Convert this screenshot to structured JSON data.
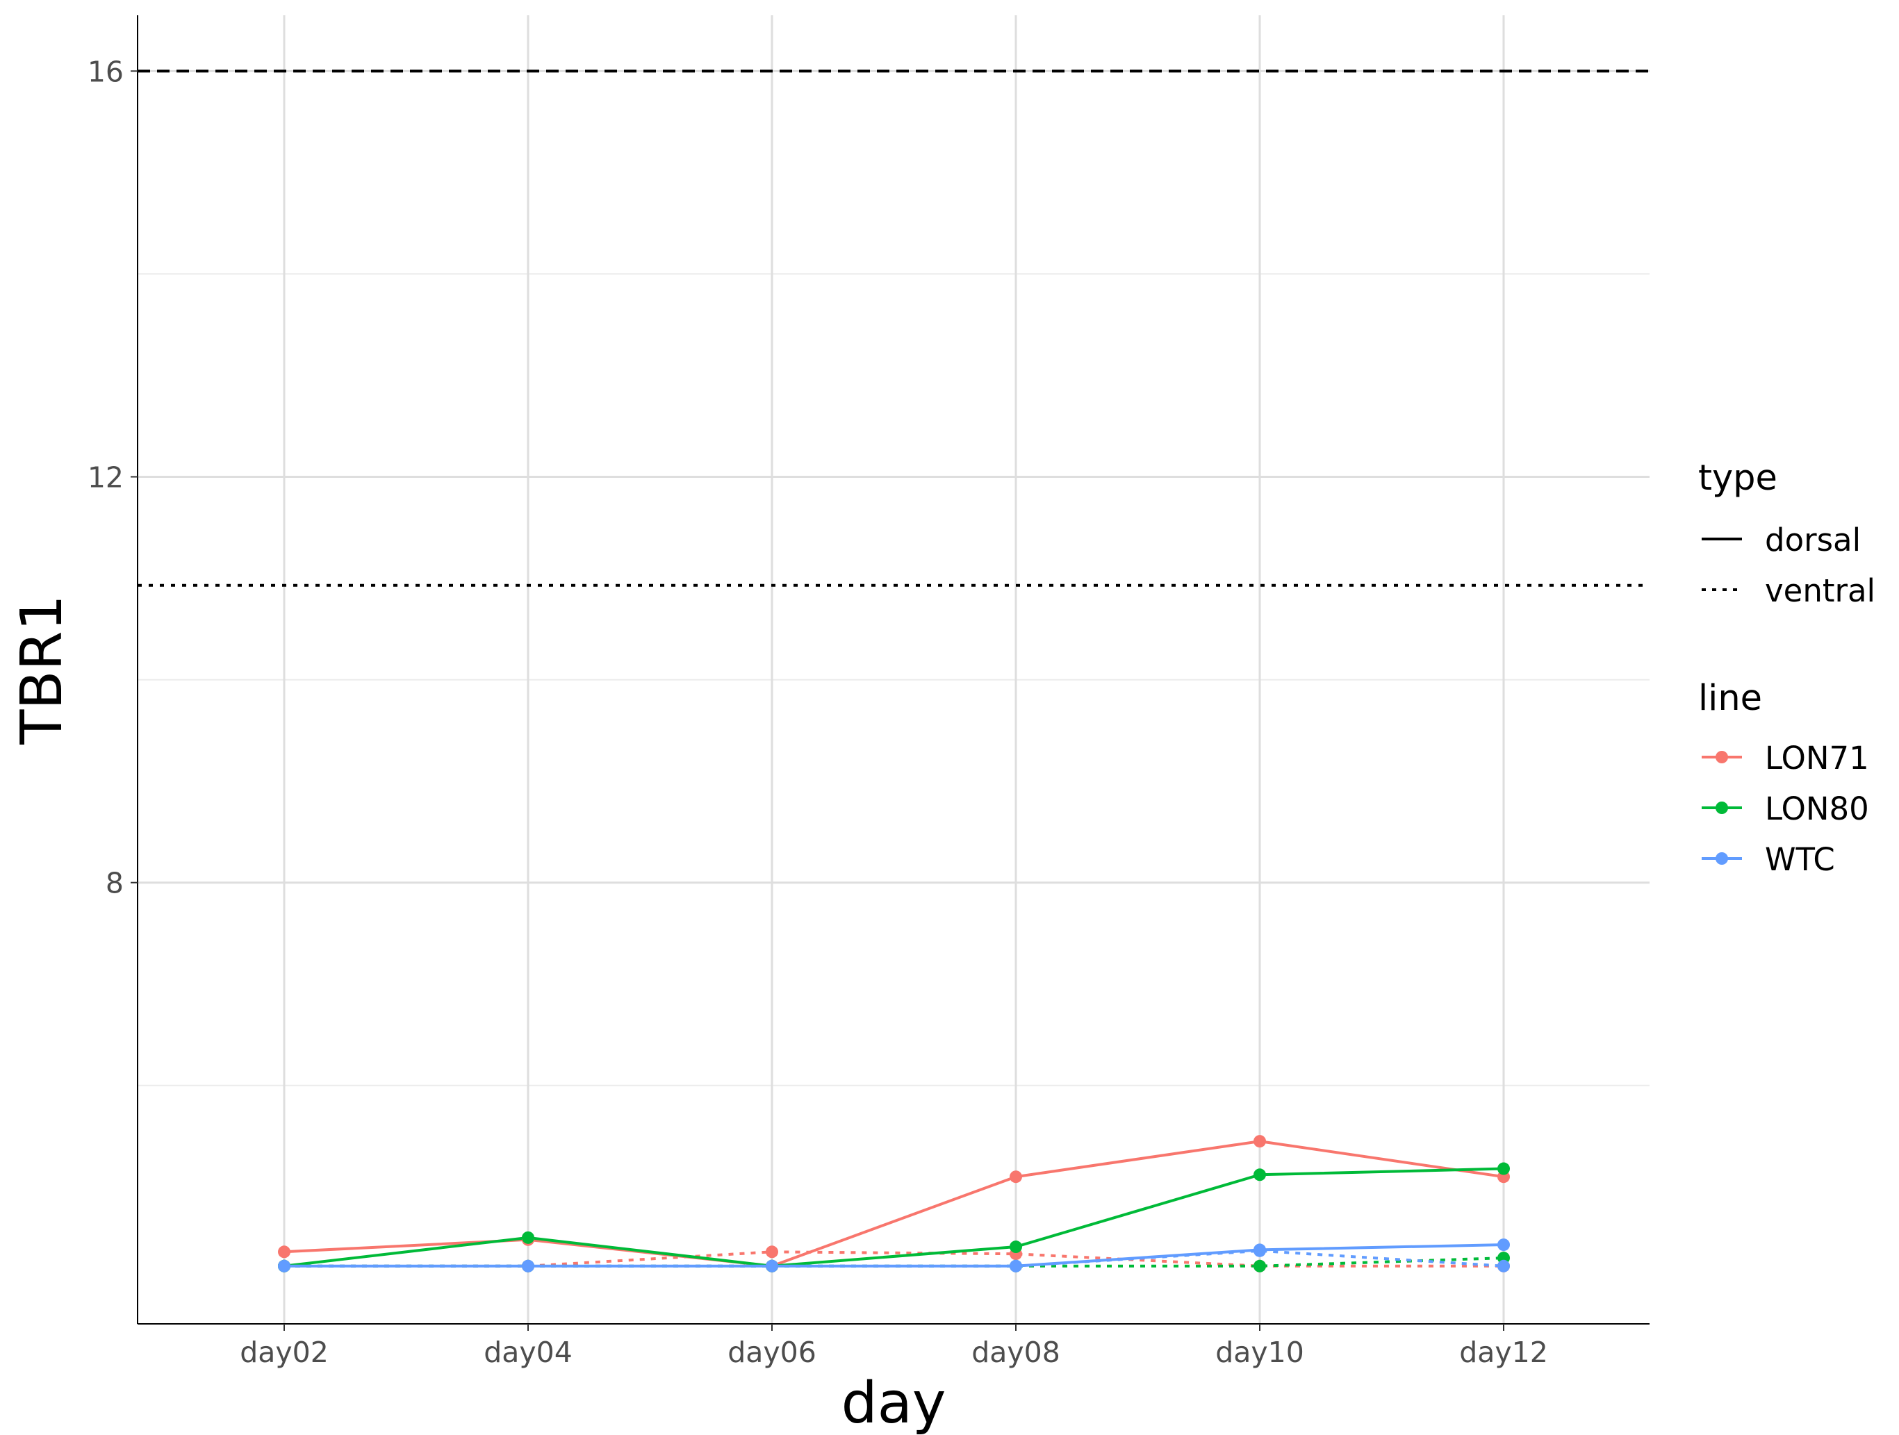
{
  "chart_data": {
    "type": "line",
    "xlabel": "day",
    "ylabel": "TBR1",
    "categories": [
      "day02",
      "day04",
      "day06",
      "day08",
      "day10",
      "day12"
    ],
    "ylim": [
      3.65,
      16.55
    ],
    "yticks": [
      8,
      12,
      16
    ],
    "grid": true,
    "reference_lines": [
      {
        "y": 16,
        "style": "dashed"
      },
      {
        "y": 10.93,
        "style": "dotted"
      }
    ],
    "series": [
      {
        "name": "LON71",
        "type": "dorsal",
        "color": "#F8766D",
        "values": [
          4.36,
          4.48,
          4.22,
          5.1,
          5.45,
          5.1
        ]
      },
      {
        "name": "LON80",
        "type": "dorsal",
        "color": "#00BA38",
        "values": [
          4.22,
          4.5,
          4.22,
          4.41,
          5.12,
          5.18
        ]
      },
      {
        "name": "WTC",
        "type": "dorsal",
        "color": "#619CFF",
        "values": [
          4.22,
          4.22,
          4.22,
          4.22,
          4.38,
          4.43
        ]
      },
      {
        "name": "LON71",
        "type": "ventral",
        "color": "#F8766D",
        "values": [
          4.22,
          4.22,
          4.36,
          4.34,
          4.22,
          4.22
        ]
      },
      {
        "name": "LON80",
        "type": "ventral",
        "color": "#00BA38",
        "values": [
          4.22,
          4.22,
          4.22,
          4.22,
          4.22,
          4.3
        ]
      },
      {
        "name": "WTC",
        "type": "ventral",
        "color": "#619CFF",
        "values": [
          4.22,
          4.22,
          4.22,
          4.22,
          4.37,
          4.22
        ]
      }
    ],
    "legend": {
      "position": "right",
      "type_title": "type",
      "type_items": [
        {
          "label": "dorsal",
          "style": "solid"
        },
        {
          "label": "ventral",
          "style": "dotted"
        }
      ],
      "line_title": "line",
      "line_items": [
        {
          "label": "LON71",
          "color": "#F8766D"
        },
        {
          "label": "LON80",
          "color": "#00BA38"
        },
        {
          "label": "WTC",
          "color": "#619CFF"
        }
      ]
    }
  }
}
